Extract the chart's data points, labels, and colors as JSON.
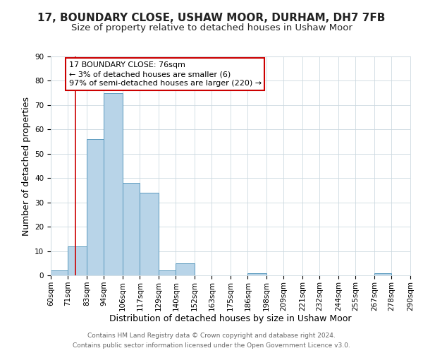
{
  "title": "17, BOUNDARY CLOSE, USHAW MOOR, DURHAM, DH7 7FB",
  "subtitle": "Size of property relative to detached houses in Ushaw Moor",
  "xlabel": "Distribution of detached houses by size in Ushaw Moor",
  "ylabel": "Number of detached properties",
  "bin_edges": [
    60,
    71,
    83,
    94,
    106,
    117,
    129,
    140,
    152,
    163,
    175,
    186,
    198,
    209,
    221,
    232,
    244,
    255,
    267,
    278,
    290
  ],
  "bar_heights": [
    2,
    12,
    56,
    75,
    38,
    34,
    2,
    5,
    0,
    0,
    0,
    1,
    0,
    0,
    0,
    0,
    0,
    0,
    1,
    0
  ],
  "bar_color": "#b8d4e8",
  "bar_edge_color": "#5a9abe",
  "property_size": 76,
  "vline_color": "#cc0000",
  "annotation_line1": "17 BOUNDARY CLOSE: 76sqm",
  "annotation_line2": "← 3% of detached houses are smaller (6)",
  "annotation_line3": "97% of semi-detached houses are larger (220) →",
  "annotation_box_color": "#ffffff",
  "annotation_box_edge_color": "#cc0000",
  "ylim": [
    0,
    90
  ],
  "yticks": [
    0,
    10,
    20,
    30,
    40,
    50,
    60,
    70,
    80,
    90
  ],
  "footer_line1": "Contains HM Land Registry data © Crown copyright and database right 2024.",
  "footer_line2": "Contains public sector information licensed under the Open Government Licence v3.0.",
  "background_color": "#ffffff",
  "grid_color": "#ccd9e0",
  "title_fontsize": 11,
  "subtitle_fontsize": 9.5,
  "label_fontsize": 9,
  "tick_fontsize": 7.5,
  "annotation_fontsize": 8,
  "footer_fontsize": 6.5
}
